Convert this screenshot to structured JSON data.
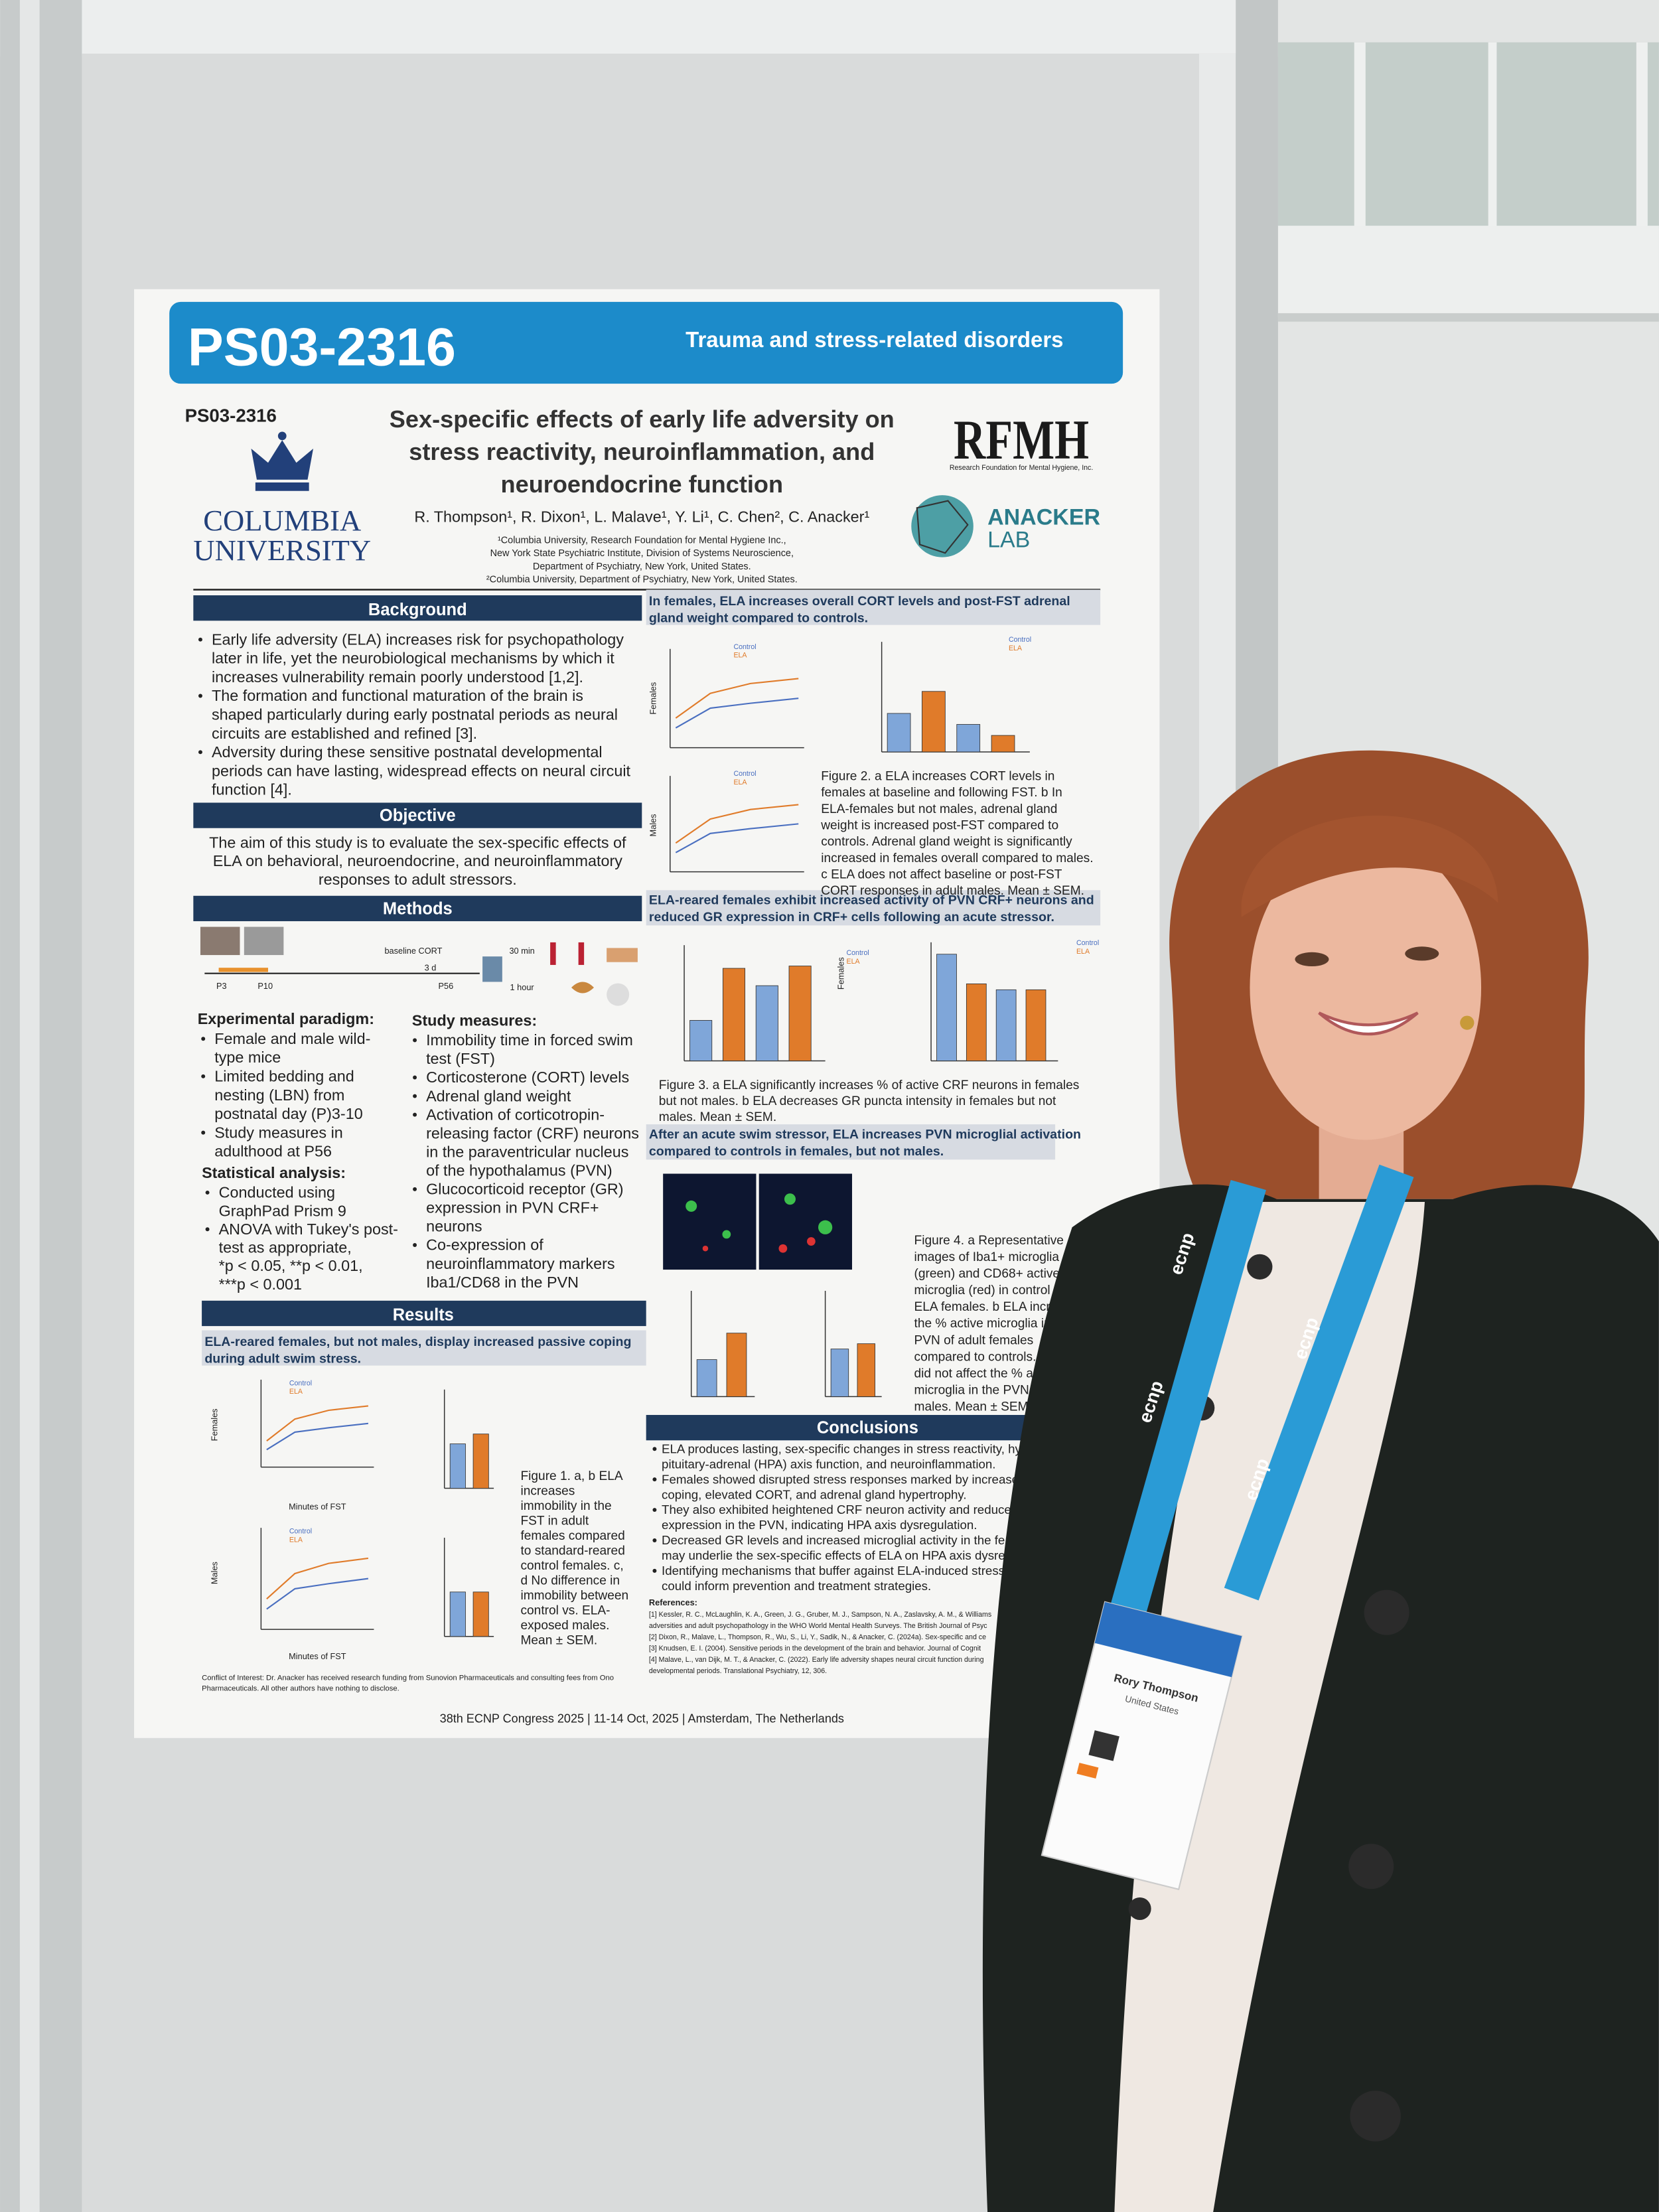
{
  "poster": {
    "banner_code": "PS03-2316",
    "banner_track": "Trauma and stress-related disorders",
    "code": "PS03-2316",
    "title": [
      "Sex-specific effects of early life adversity on",
      "stress reactivity, neuroinflammation, and",
      "neuroendocrine function"
    ],
    "authors": "R. Thompson¹, R. Dixon¹, L. Malave¹, Y. Li¹, C. Chen², C. Anacker¹",
    "affiliations": [
      "¹Columbia University, Research Foundation for Mental Hygiene Inc.,",
      "New York State Psychiatric Institute, Division of Systems Neuroscience,",
      "Department of Psychiatry, New York, United States.",
      "²Columbia University, Department of Psychiatry, New York, United States."
    ],
    "columbia": [
      "COLUMBIA",
      "UNIVERSITY"
    ],
    "rfmh": "RFMH",
    "rfmh_subtitle": "Research Foundation for Mental Hygiene, Inc.",
    "anacker": [
      "ANACKER",
      "LAB"
    ],
    "background": {
      "heading": "Background",
      "lines": [
        "Early life adversity (ELA) increases risk for psychopathology",
        "later in life, yet the neurobiological mechanisms by which it",
        "increases vulnerability remain poorly understood [1,2].",
        "The formation and functional maturation of the brain is",
        "shaped particularly during early postnatal periods as neural",
        "circuits are established and refined [3].",
        "Adversity during these sensitive postnatal developmental",
        "periods can have lasting, widespread effects on neural circuit",
        "function [4]."
      ]
    },
    "objective": {
      "heading": "Objective",
      "lines": [
        "The aim of this study is to evaluate the sex-specific effects of",
        "ELA on behavioral, neuroendocrine, and neuroinflammatory",
        "responses to adult stressors."
      ]
    },
    "methods": {
      "heading": "Methods",
      "timeline": [
        "P3",
        "P10",
        "P56",
        "baseline CORT",
        "3 d",
        "30 min",
        "1 hour"
      ],
      "paradigm_heading": "Experimental paradigm:",
      "paradigm_lines": [
        "Female and male wild-",
        "type mice",
        "Limited bedding and",
        "nesting (LBN) from",
        "postnatal day (P)3-10",
        "Study measures in",
        "adulthood at P56"
      ],
      "stats_heading": "Statistical analysis:",
      "stats_lines": [
        "Conducted using",
        "GraphPad Prism 9",
        "ANOVA with Tukey's post-",
        "test as appropriate,",
        "*p < 0.05, **p < 0.01,",
        "***p < 0.001"
      ],
      "measures_heading": "Study measures:",
      "measures_lines": [
        "Immobility time in forced swim",
        "test (FST)",
        "Corticosterone (CORT) levels",
        "Adrenal gland weight",
        "Activation of corticotropin-",
        "releasing factor (CRF) neurons",
        "in the paraventricular nucleus",
        "of the hypothalamus (PVN)",
        "Glucocorticoid receptor (GR)",
        "expression in PVN CRF+",
        "neurons",
        "Co-expression of",
        "neuroinflammatory markers",
        "Iba1/CD68 in the PVN"
      ]
    },
    "results": {
      "heading": "Results",
      "subheading": [
        "ELA-reared females, but not males, display increased passive coping",
        "during adult swim stress."
      ],
      "fig1_caption": [
        "Figure 1. a, b ELA",
        "increases",
        "immobility in the",
        "FST in adult",
        "females compared",
        "to standard-reared",
        "control females. c,",
        "d No difference in",
        "immobility between",
        "control vs. ELA-",
        "exposed males.",
        "Mean ± SEM."
      ]
    },
    "fig2": {
      "heading": [
        "In females, ELA increases overall CORT levels and post-FST adrenal",
        "gland weight compared to controls."
      ],
      "caption": [
        "Figure 2. a ELA increases CORT levels in",
        "females at baseline and following FST. b In",
        "ELA-females but not males, adrenal gland",
        "weight is increased post-FST compared to",
        "controls. Adrenal gland weight is significantly",
        "increased in females overall compared to males.",
        "c ELA does not affect baseline or post-FST",
        "CORT responses in adult males. Mean ± SEM."
      ]
    },
    "fig3": {
      "heading": [
        "ELA-reared females exhibit increased activity of PVN CRF+ neurons and",
        "reduced GR expression in CRF+ cells following an acute stressor."
      ],
      "caption": [
        "Figure 3. a ELA significantly increases % of active CRF neurons in females",
        "but not males. b ELA decreases GR puncta intensity in females but not",
        "males. Mean ± SEM."
      ]
    },
    "fig4": {
      "heading": [
        "After an acute swim stressor, ELA increases PVN microglial activation",
        "compared to controls in females, but not males."
      ],
      "caption": [
        "Figure 4. a Representative",
        "images of Iba1+ microglia",
        "(green) and CD68+ active",
        "microglia (red) in control",
        "ELA females. b ELA incr",
        "the % active microglia in",
        "PVN of adult females",
        "compared to controls. c",
        "did not affect the % acti",
        "microglia in the PVN of",
        "males. Mean ± SEM."
      ]
    },
    "labels": {
      "control": "Control",
      "ela": "ELA",
      "females": "Females",
      "males": "Males",
      "minutes": "Minutes of FST"
    },
    "conclusions": {
      "heading": "Conclusions",
      "lines": [
        "ELA produces lasting, sex-specific changes in stress reactivity, hyp",
        "pituitary-adrenal (HPA) axis function, and neuroinflammation.",
        "Females showed disrupted stress responses marked by increase",
        "coping, elevated CORT, and adrenal gland hypertrophy.",
        "They also exhibited heightened CRF neuron activity and reduce",
        "expression in the PVN, indicating HPA axis dysregulation.",
        "Decreased GR levels and increased microglial activity in the fe",
        "may underlie the sex-specific effects of ELA on HPA axis dysreg",
        "Identifying mechanisms that buffer against ELA-induced stress",
        "could inform prevention and treatment strategies."
      ]
    },
    "references": {
      "heading": "References:",
      "lines": [
        "[1] Kessler, R. C., McLaughlin, K. A., Green, J. G., Gruber, M. J., Sampson, N. A., Zaslavsky, A. M., & Williams",
        "adversities and adult psychopathology in the WHO World Mental Health Surveys. The British Journal of Psyc",
        "[2] Dixon, R., Malave, L., Thompson, R., Wu, S., Li, Y., Sadik, N., & Anacker, C. (2024a). Sex-specific and ce",
        "[3] Knudsen, E. I. (2004). Sensitive periods in the development of the brain and behavior. Journal of Cognit",
        "[4] Malave, L., van Dijk, M. T., & Anacker, C. (2022). Early life adversity shapes neural circuit function during",
        "developmental periods. Translational Psychiatry, 12, 306."
      ]
    },
    "conflict": [
      "Conflict of Interest: Dr. Anacker has received research funding from Sunovion Pharmaceuticals and consulting fees from Ono",
      "Pharmaceuticals. All other authors have nothing to disclose."
    ],
    "footer": "38th ECNP Congress 2025 | 11-14 Oct, 2025 | Amsterdam, The Netherlands"
  },
  "badge": {
    "name": "Rory Thompson",
    "country": "United States"
  },
  "lanyard": "ecnp"
}
